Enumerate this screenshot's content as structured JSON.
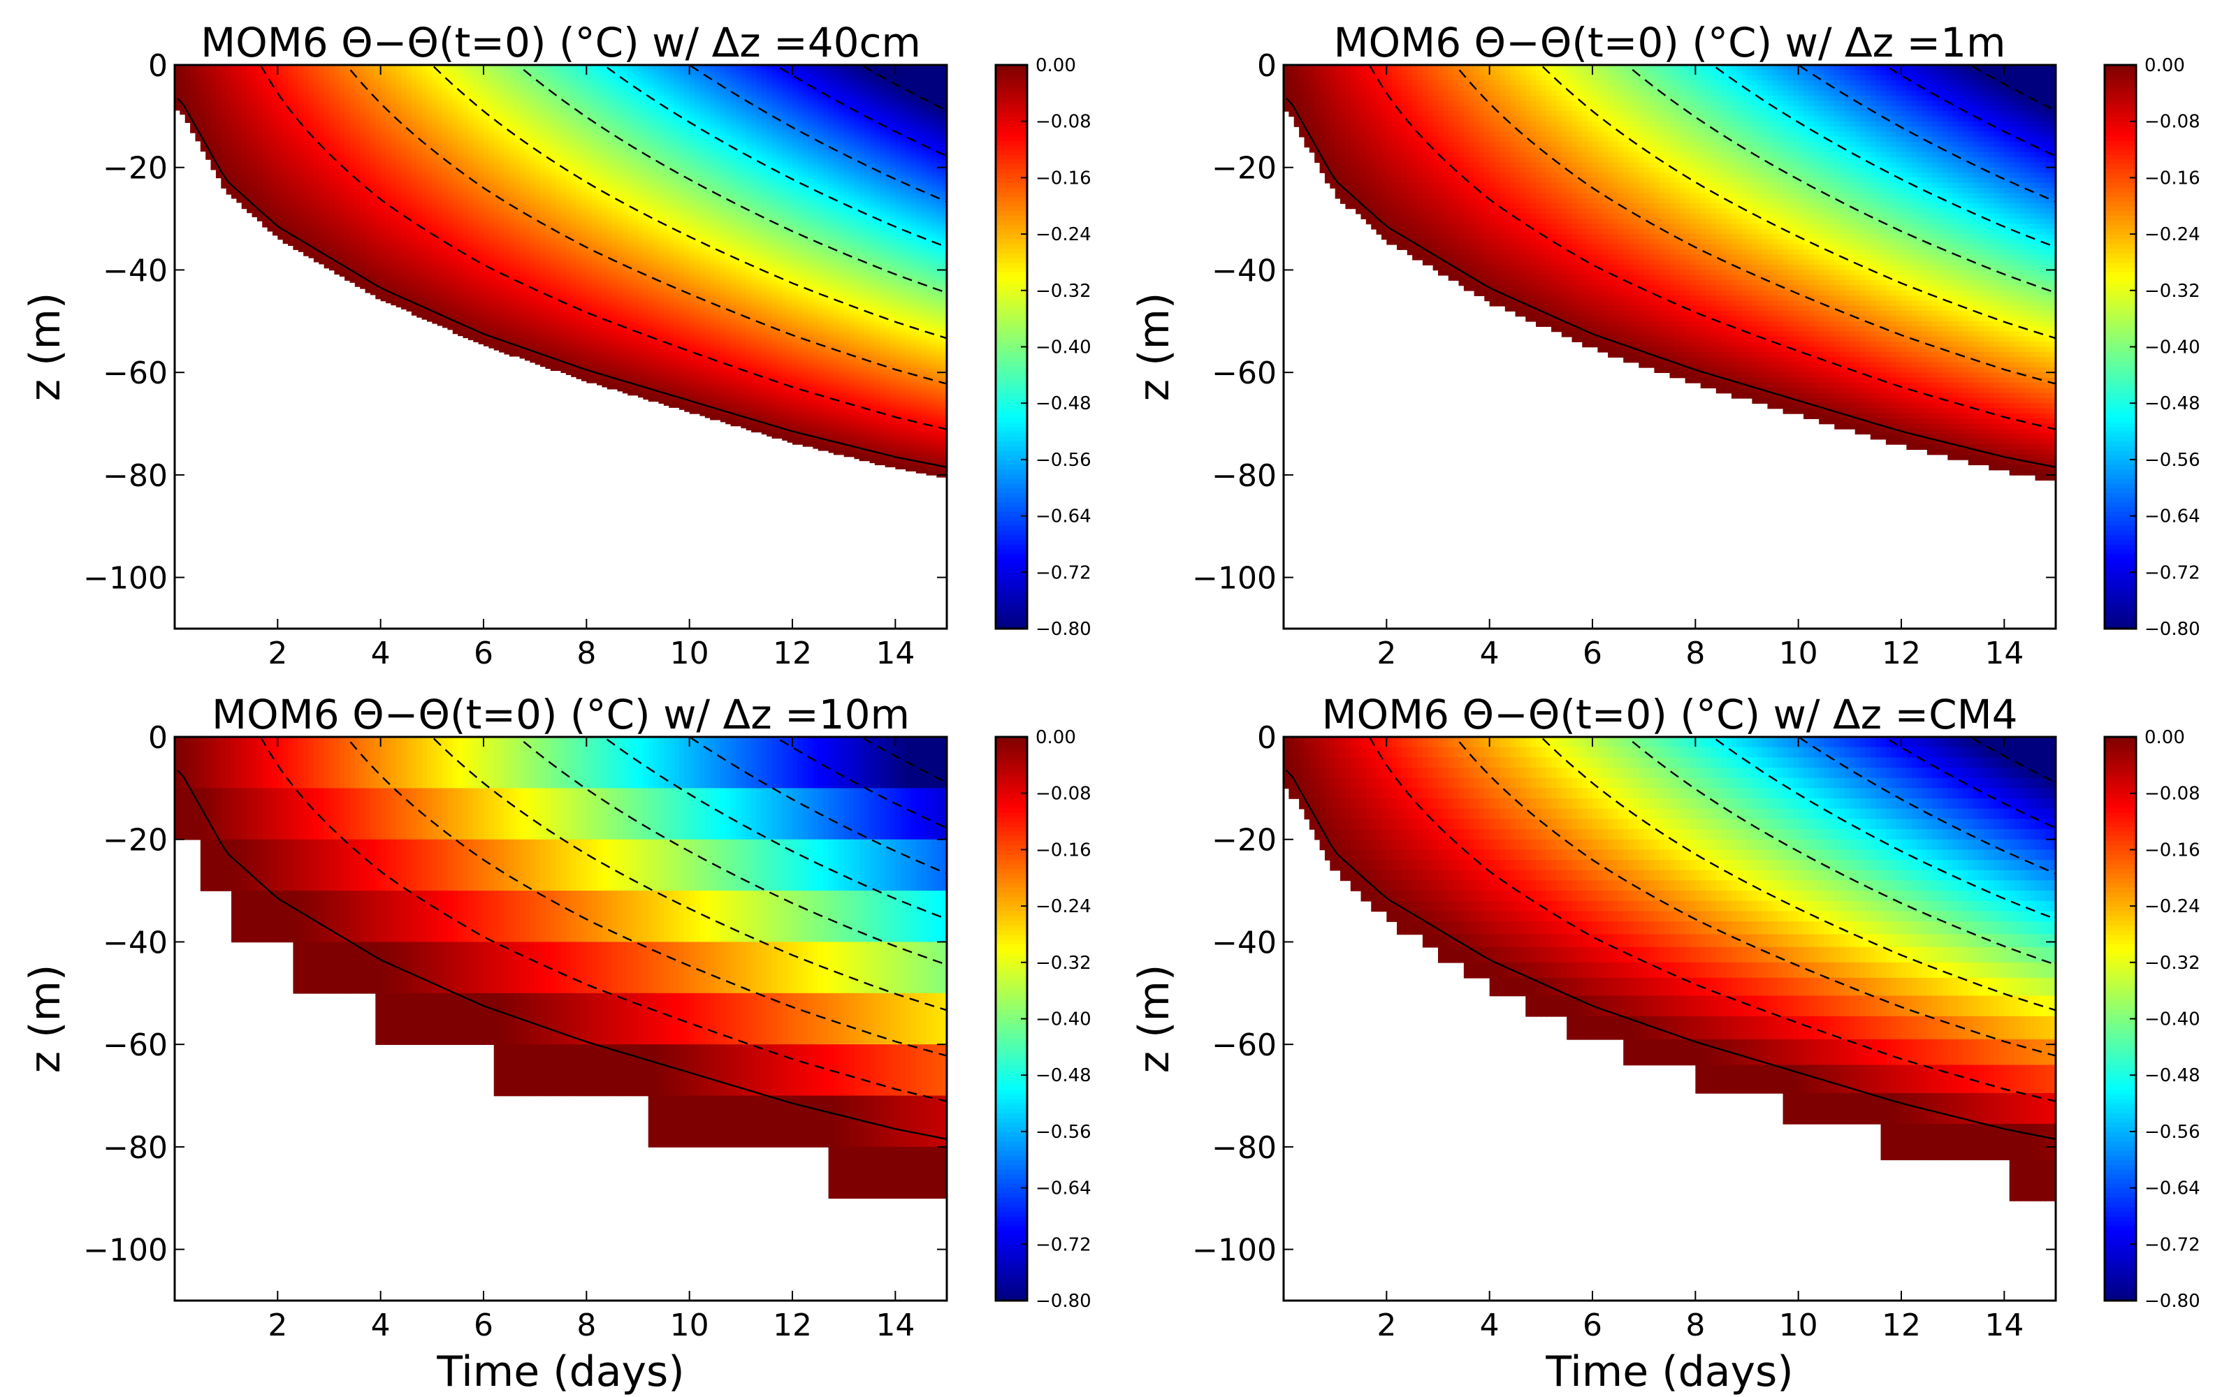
{
  "figure": {
    "background": "#ffffff"
  },
  "colormap": {
    "name": "jet",
    "stops": [
      "#00007f",
      "#0000ff",
      "#007fff",
      "#00ffff",
      "#7fff7f",
      "#ffff00",
      "#ff7f00",
      "#ff0000",
      "#7f0000"
    ]
  },
  "chart_data": [
    {
      "type": "heatmap",
      "title": "MOM6 Θ−Θ(t=0) (°C) w/ Δz =40cm",
      "xlabel": "",
      "ylabel": "z (m)",
      "xlim": [
        0,
        15
      ],
      "ylim": [
        -110,
        0
      ],
      "xticks": [
        2,
        4,
        6,
        8,
        10,
        12,
        14
      ],
      "yticks": [
        0,
        -20,
        -40,
        -60,
        -80,
        -100
      ],
      "grid": false,
      "layer_thickness_m": 0.4,
      "z_field": "Theta - Theta(t=0) (deg C)",
      "mixed_layer_depth_m": {
        "days": [
          0.1,
          1,
          2,
          4,
          6,
          8,
          10,
          12,
          14,
          15
        ],
        "depth": [
          8,
          24,
          33,
          45,
          54,
          61,
          67,
          73,
          78,
          80
        ]
      },
      "colorbar": {
        "min": -0.8,
        "max": 0.0,
        "ticks": [
          "0.00",
          "−0.08",
          "−0.16",
          "−0.24",
          "−0.32",
          "−0.40",
          "−0.48",
          "−0.56",
          "−0.64",
          "−0.72",
          "−0.80"
        ]
      },
      "contours": {
        "levels": [
          -0.1,
          -0.2,
          -0.3,
          -0.4,
          -0.5,
          -0.6,
          -0.7,
          -0.8
        ],
        "solid_level": 0.0
      }
    },
    {
      "type": "heatmap",
      "title": "MOM6 Θ−Θ(t=0) (°C) w/ Δz =1m",
      "xlabel": "",
      "ylabel": "z (m)",
      "xlim": [
        0,
        15
      ],
      "ylim": [
        -110,
        0
      ],
      "xticks": [
        2,
        4,
        6,
        8,
        10,
        12,
        14
      ],
      "yticks": [
        0,
        -20,
        -40,
        -60,
        -80,
        -100
      ],
      "grid": false,
      "layer_thickness_m": 1,
      "z_field": "Theta - Theta(t=0) (deg C)",
      "mixed_layer_depth_m": {
        "days": [
          0.1,
          1,
          2,
          4,
          6,
          8,
          10,
          12,
          14,
          15
        ],
        "depth": [
          8,
          24,
          33,
          45,
          54,
          61,
          67,
          73,
          78,
          80
        ]
      },
      "colorbar": {
        "min": -0.8,
        "max": 0.0,
        "ticks": [
          "0.00",
          "−0.08",
          "−0.16",
          "−0.24",
          "−0.32",
          "−0.40",
          "−0.48",
          "−0.56",
          "−0.64",
          "−0.72",
          "−0.80"
        ]
      },
      "contours": {
        "levels": [
          -0.1,
          -0.2,
          -0.3,
          -0.4,
          -0.5,
          -0.6,
          -0.7,
          -0.8
        ],
        "solid_level": 0.0
      }
    },
    {
      "type": "heatmap",
      "title": "MOM6 Θ−Θ(t=0) (°C) w/ Δz =10m",
      "xlabel": "Time (days)",
      "ylabel": "z (m)",
      "xlim": [
        0,
        15
      ],
      "ylim": [
        -110,
        0
      ],
      "xticks": [
        2,
        4,
        6,
        8,
        10,
        12,
        14
      ],
      "yticks": [
        0,
        -20,
        -40,
        -60,
        -80,
        -100
      ],
      "grid": false,
      "layer_thickness_m": 10,
      "z_field": "Theta - Theta(t=0) (deg C)",
      "mixed_layer_depth_m": {
        "days": [
          0.1,
          1,
          2,
          4,
          6,
          8,
          10,
          12,
          14,
          15
        ],
        "depth": [
          8,
          24,
          33,
          45,
          54,
          61,
          67,
          73,
          78,
          80
        ]
      },
      "colorbar": {
        "min": -0.8,
        "max": 0.0,
        "ticks": [
          "0.00",
          "−0.08",
          "−0.16",
          "−0.24",
          "−0.32",
          "−0.40",
          "−0.48",
          "−0.56",
          "−0.64",
          "−0.72",
          "−0.80"
        ]
      },
      "contours": {
        "levels": [
          -0.1,
          -0.2,
          -0.3,
          -0.4,
          -0.5,
          -0.6,
          -0.7,
          -0.8
        ],
        "solid_level": 0.0
      }
    },
    {
      "type": "heatmap",
      "title": "MOM6 Θ−Θ(t=0) (°C) w/ Δz =CM4",
      "xlabel": "Time (days)",
      "ylabel": "z (m)",
      "xlim": [
        0,
        15
      ],
      "ylim": [
        -110,
        0
      ],
      "xticks": [
        2,
        4,
        6,
        8,
        10,
        12,
        14
      ],
      "yticks": [
        0,
        -20,
        -40,
        -60,
        -80,
        -100
      ],
      "grid": false,
      "layer_thickness_m": [
        2,
        2,
        2,
        2,
        2,
        2,
        2,
        2,
        2,
        2,
        2,
        2,
        2,
        2,
        2,
        2,
        2,
        2,
        2.5,
        2.5,
        3,
        3,
        3.5,
        4,
        4.5,
        5,
        5.5,
        6,
        7,
        8,
        9
      ],
      "z_field": "Theta - Theta(t=0) (deg C)",
      "mixed_layer_depth_m": {
        "days": [
          0.1,
          1,
          2,
          4,
          6,
          8,
          10,
          12,
          14,
          15
        ],
        "depth": [
          8,
          24,
          33,
          45,
          54,
          61,
          67,
          73,
          78,
          80
        ]
      },
      "colorbar": {
        "min": -0.8,
        "max": 0.0,
        "ticks": [
          "0.00",
          "−0.08",
          "−0.16",
          "−0.24",
          "−0.32",
          "−0.40",
          "−0.48",
          "−0.56",
          "−0.64",
          "−0.72",
          "−0.80"
        ]
      },
      "contours": {
        "levels": [
          -0.1,
          -0.2,
          -0.3,
          -0.4,
          -0.5,
          -0.6,
          -0.7,
          -0.8
        ],
        "solid_level": 0.0
      }
    }
  ]
}
